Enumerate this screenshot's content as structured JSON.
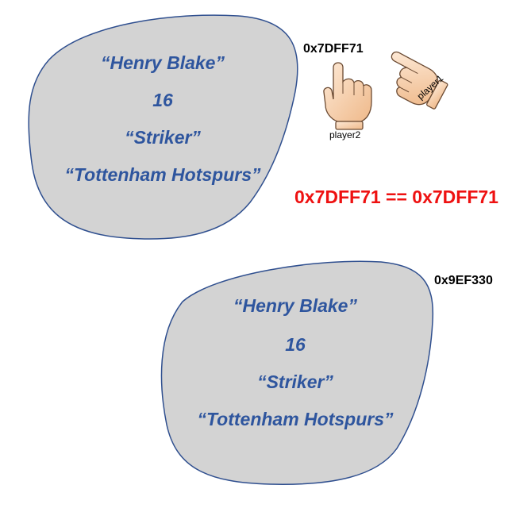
{
  "colors": {
    "blob_fill": "#d3d3d3",
    "blob_stroke": "#2f4f8f",
    "object_text": "#2e559e",
    "compare_text": "#ee1111",
    "skin": "#f9d6b3"
  },
  "object_top": {
    "address": "0x7DFF71",
    "name": "“Henry Blake”",
    "number": "16",
    "position": "“Striker”",
    "club": "“Tottenham Hotspurs”"
  },
  "object_bottom": {
    "address": "0x9EF330",
    "name": "“Henry Blake”",
    "number": "16",
    "position": "“Striker”",
    "club": "“Tottenham Hotspurs”"
  },
  "references": {
    "player1": "player1",
    "player2": "player2"
  },
  "comparison": "0x7DFF71 == 0x7DFF71"
}
